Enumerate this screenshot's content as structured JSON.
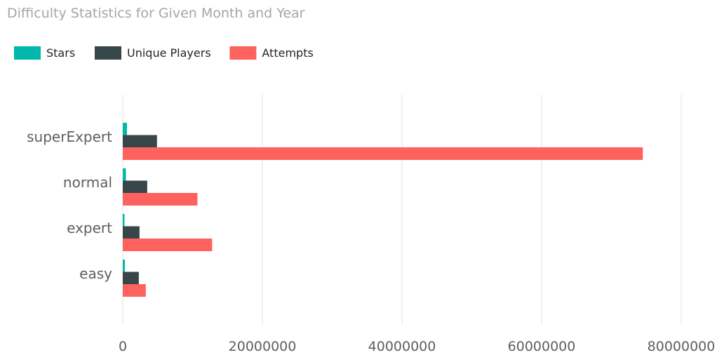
{
  "chart_data": {
    "type": "bar",
    "orientation": "horizontal",
    "title": "Difficulty Statistics for Given Month and Year",
    "categories": [
      "superExpert",
      "normal",
      "expert",
      "easy"
    ],
    "series": [
      {
        "name": "Stars",
        "color": "#01B8AA",
        "values": [
          600000,
          450000,
          250000,
          300000
        ]
      },
      {
        "name": "Unique Players",
        "color": "#374649",
        "values": [
          4900000,
          3500000,
          2400000,
          2300000
        ]
      },
      {
        "name": "Attempts",
        "color": "#FD625E",
        "values": [
          74500000,
          10700000,
          12800000,
          3300000
        ]
      }
    ],
    "xlim": [
      0,
      80000000
    ],
    "x_ticks": [
      "0",
      "20000000",
      "40000000",
      "60000000",
      "80000000"
    ],
    "legend_position": "top-left",
    "grid": true
  }
}
